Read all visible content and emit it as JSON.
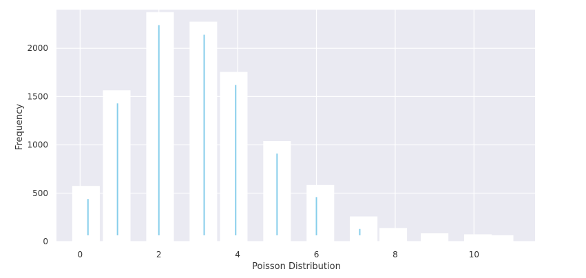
{
  "chart_data": {
    "type": "bar",
    "title": "",
    "xlabel": "Poisson Distribution",
    "ylabel": "Frequency",
    "xlim": [
      -0.6,
      11.55
    ],
    "ylim": [
      0,
      2400
    ],
    "xticks": [
      0,
      2,
      4,
      6,
      8,
      10
    ],
    "yticks": [
      0,
      500,
      1000,
      1500,
      2000
    ],
    "grid": true,
    "background": "#eaeaf2",
    "grid_color": "#ffffff",
    "line_color": "#87ceeb",
    "histogram_bins": [
      {
        "x0": -0.2,
        "x1": 0.5,
        "count": 575
      },
      {
        "x0": 0.58,
        "x1": 1.28,
        "count": 1565
      },
      {
        "x0": 1.68,
        "x1": 2.38,
        "count": 2375
      },
      {
        "x0": 2.78,
        "x1": 3.48,
        "count": 2275
      },
      {
        "x0": 3.55,
        "x1": 4.25,
        "count": 1755
      },
      {
        "x0": 4.65,
        "x1": 5.35,
        "count": 1040
      },
      {
        "x0": 5.75,
        "x1": 6.45,
        "count": 585
      },
      {
        "x0": 6.85,
        "x1": 7.55,
        "count": 260
      },
      {
        "x0": 7.6,
        "x1": 8.3,
        "count": 140
      },
      {
        "x0": 8.65,
        "x1": 9.35,
        "count": 85
      },
      {
        "x0": 9.75,
        "x1": 10.45,
        "count": 75
      },
      {
        "x0": 10.45,
        "x1": 11.0,
        "count": 65
      }
    ],
    "pmf_lines": [
      {
        "x": 0.2,
        "value": 440
      },
      {
        "x": 0.95,
        "value": 1430
      },
      {
        "x": 2.0,
        "value": 2240
      },
      {
        "x": 3.15,
        "value": 2140
      },
      {
        "x": 3.95,
        "value": 1620
      },
      {
        "x": 5.0,
        "value": 910
      },
      {
        "x": 6.0,
        "value": 460
      },
      {
        "x": 7.1,
        "value": 130
      }
    ]
  }
}
